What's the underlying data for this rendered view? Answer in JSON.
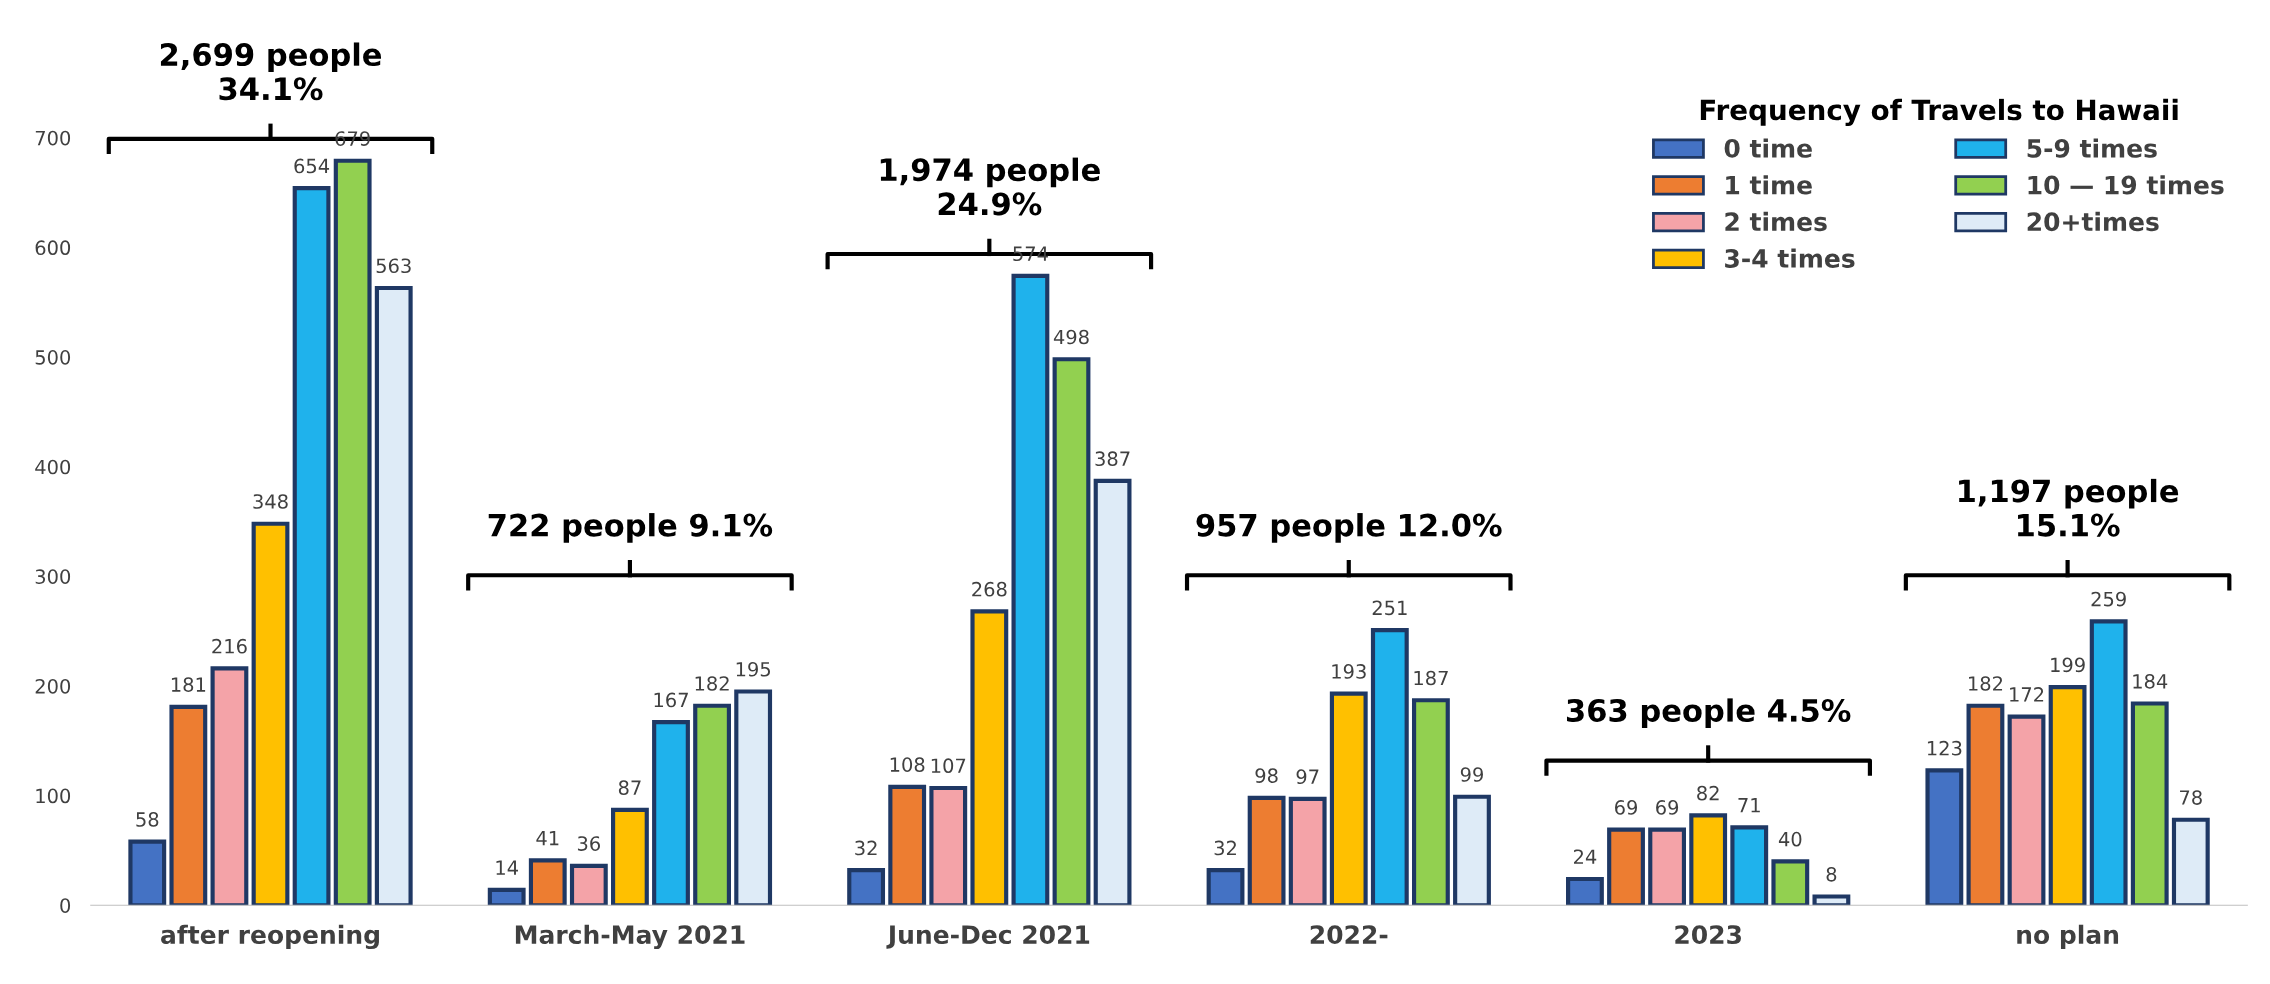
{
  "chart_data": {
    "type": "bar",
    "legend_title": "Frequency of Travels to Hawaii",
    "categories": [
      "after reopening",
      "March-May 2021",
      "June-Dec 2021",
      "2022-",
      "2023",
      "no plan"
    ],
    "series": [
      {
        "name": "0 time",
        "color": "#4472c4",
        "values": [
          58,
          14,
          32,
          32,
          24,
          123
        ]
      },
      {
        "name": "1 time",
        "color": "#ed7d31",
        "values": [
          181,
          41,
          108,
          98,
          69,
          182
        ]
      },
      {
        "name": "2 times",
        "color": "#f4a3a8",
        "values": [
          216,
          36,
          107,
          97,
          69,
          172
        ]
      },
      {
        "name": "3-4 times",
        "color": "#ffc000",
        "values": [
          348,
          87,
          268,
          193,
          82,
          199
        ]
      },
      {
        "name": "5-9 times",
        "color": "#1fb2ec",
        "values": [
          654,
          167,
          574,
          251,
          71,
          259
        ]
      },
      {
        "name": "10 — 19 times",
        "color": "#92d050",
        "values": [
          679,
          182,
          498,
          187,
          40,
          184
        ]
      },
      {
        "name": "20+times",
        "color": "#deebf7",
        "values": [
          563,
          195,
          387,
          99,
          8,
          78
        ]
      }
    ],
    "ylim": [
      0,
      700
    ],
    "yticks": [
      0,
      100,
      200,
      300,
      400,
      500,
      600,
      700
    ],
    "data_labels": true,
    "grid": false,
    "legend": "top right",
    "annotations": [
      "2,699 people\n34.1%",
      "722 people 9.1%",
      "1,974 people\n24.9%",
      "957 people 12.0%",
      "363 people 4.5%",
      "1,197 people\n15.1%"
    ]
  }
}
